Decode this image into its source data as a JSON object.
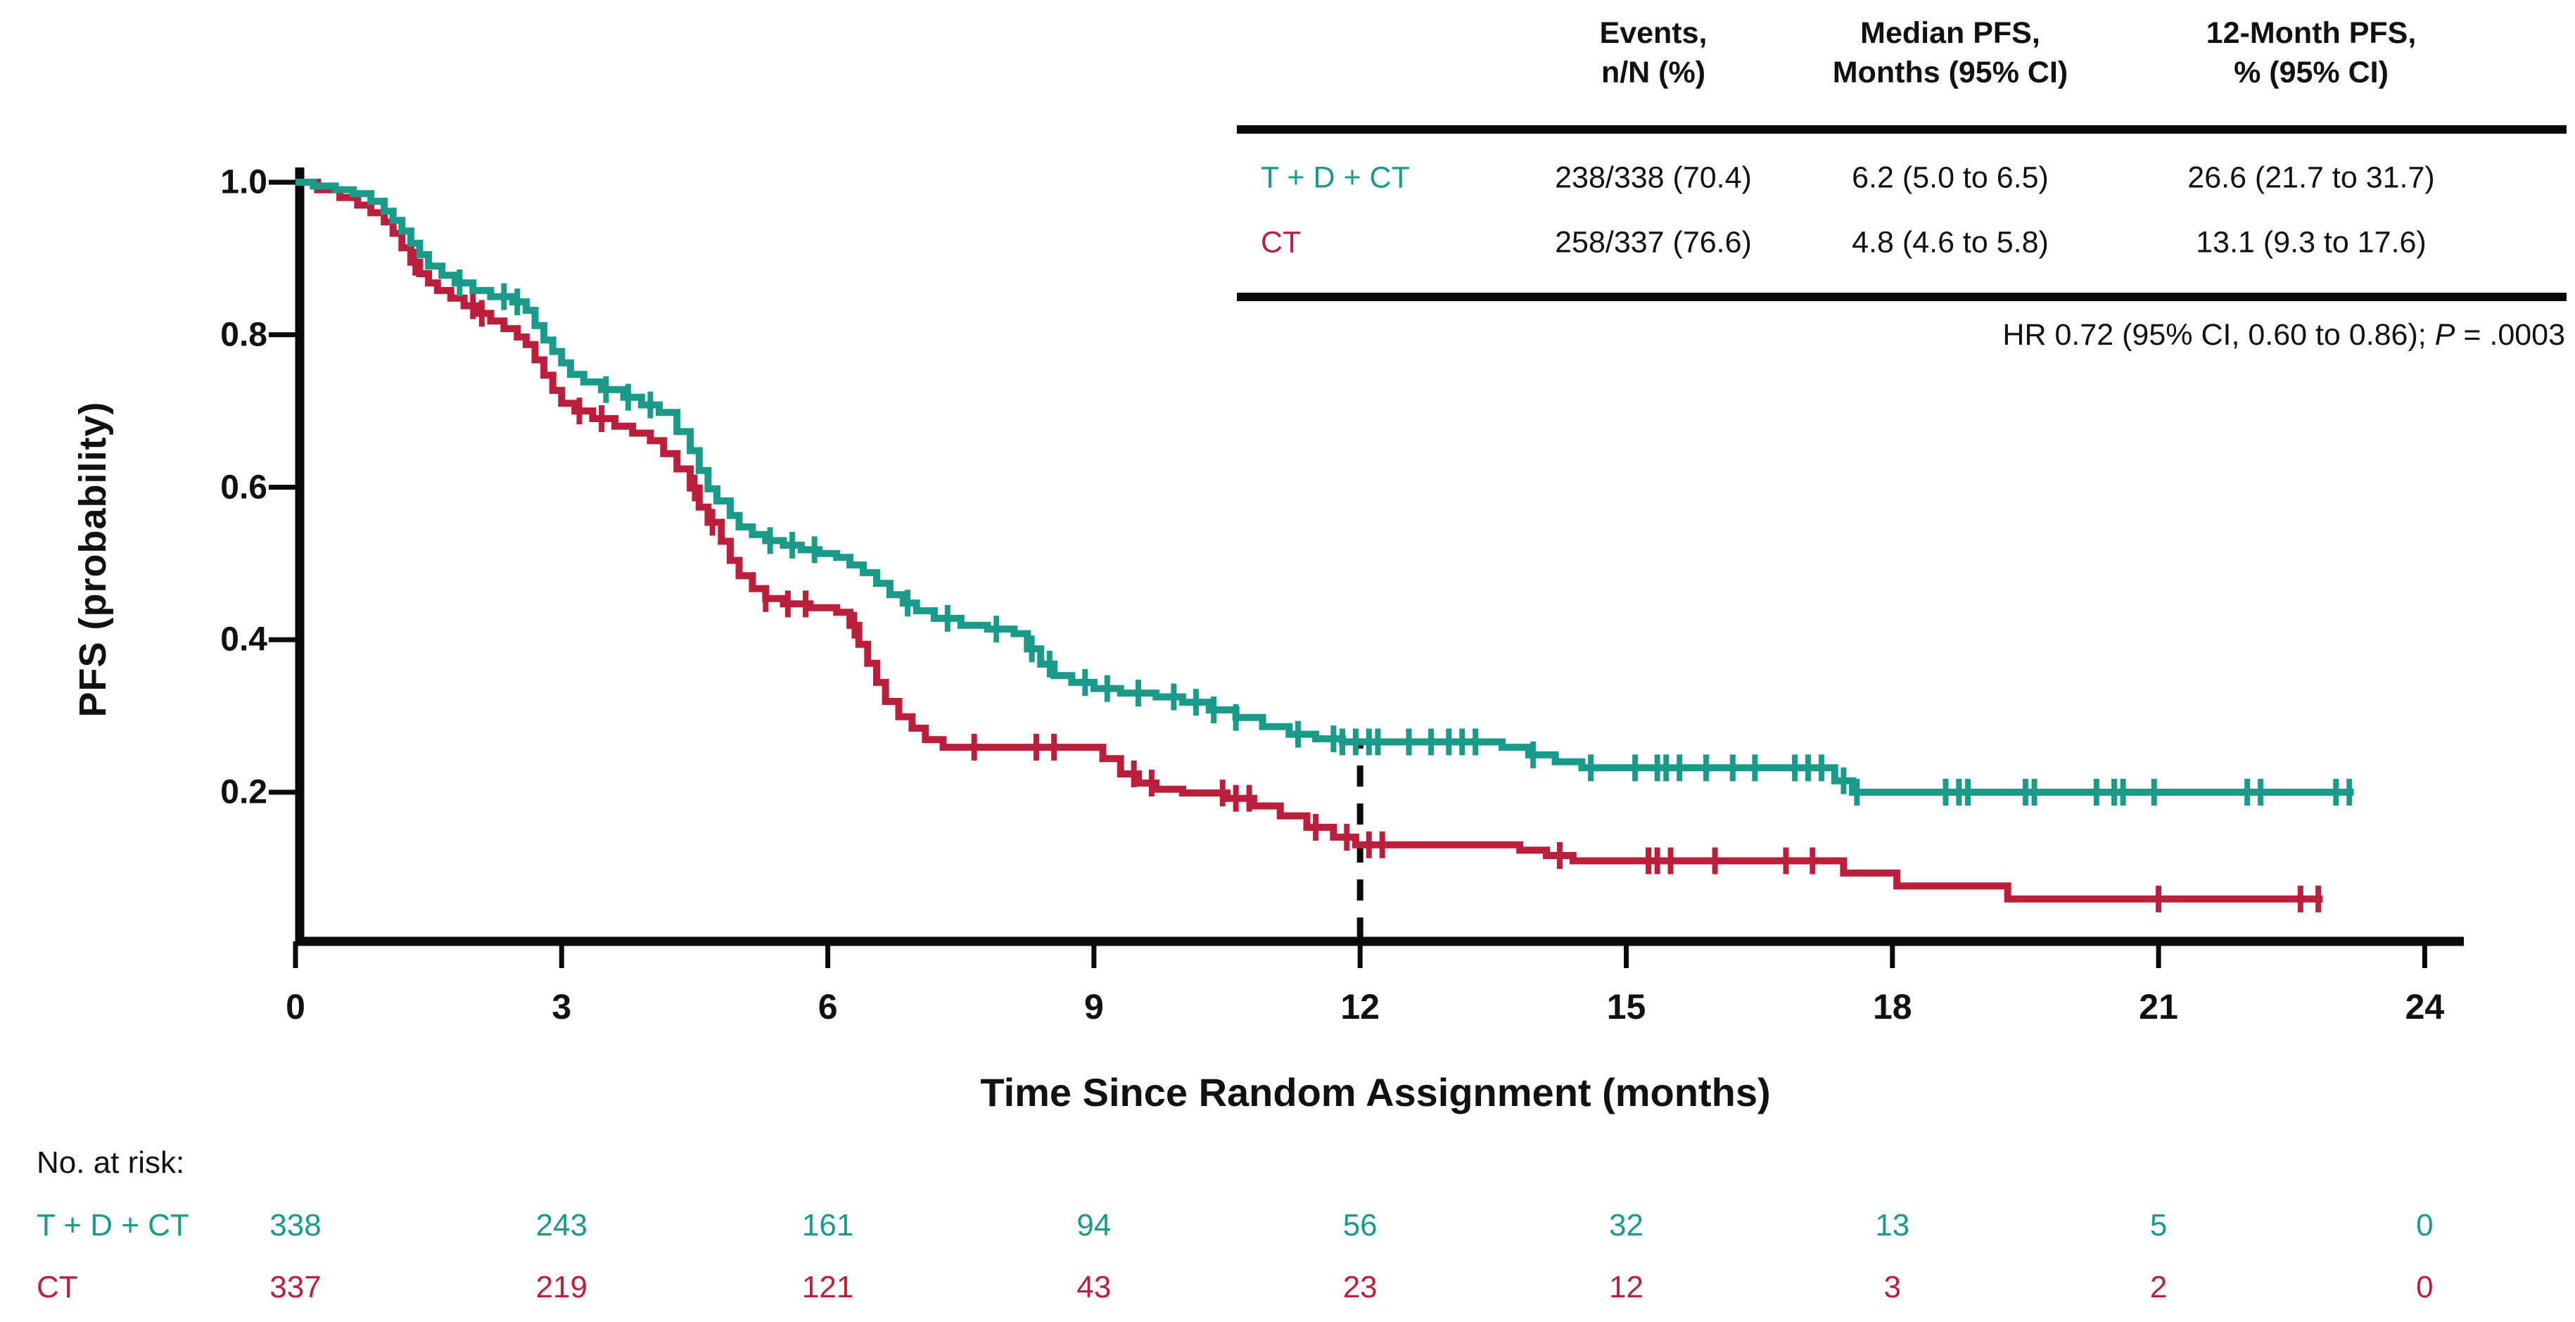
{
  "summary_table": {
    "headers": [
      {
        "line1": "Events,",
        "line2": "n/N (%)"
      },
      {
        "line1": "Median PFS,",
        "line2": "Months (95% CI)"
      },
      {
        "line1": "12-Month PFS,",
        "line2": "% (95% CI)"
      }
    ],
    "rows": [
      {
        "label": "T + D + CT",
        "events": "238/338 (70.4)",
        "median": "6.2 (5.0 to 6.5)",
        "pfs12": "26.6 (21.7 to 31.7)"
      },
      {
        "label": "CT",
        "events": "258/337 (76.6)",
        "median": "4.8 (4.6 to 5.8)",
        "pfs12": "13.1 (9.3 to 17.6)"
      }
    ]
  },
  "hr_note": {
    "prefix": "HR 0.72 (95% CI, 0.60 to 0.86); ",
    "p_symbol": "P",
    "p_rest": " = .0003"
  },
  "chart_data": {
    "type": "line",
    "subtype": "kaplan-meier-step",
    "xlabel": "Time Since Random Assignment (months)",
    "ylabel": "PFS (probability)",
    "xticks": [
      0,
      3,
      6,
      9,
      12,
      15,
      18,
      21,
      24
    ],
    "yticks": [
      "1.0",
      "0.8",
      "0.6",
      "0.4",
      "0.2"
    ],
    "ytick_values": [
      1.0,
      0.8,
      0.6,
      0.4,
      0.2
    ],
    "xlim": [
      0,
      24.5
    ],
    "ylim": [
      0,
      1.0
    ],
    "grid": false,
    "landmark_month": 12,
    "landmark_style": "dashed-vertical-to-upper-curve",
    "axis_color": "#0a0a0a",
    "series": [
      {
        "name": "T + D + CT",
        "color": "#1a9a88",
        "median_pfs_months": 6.2,
        "pfs_12mo": 0.266,
        "end_month": 23.2,
        "steps": [
          [
            0,
            1.0
          ],
          [
            0.2,
            0.995
          ],
          [
            0.45,
            0.99
          ],
          [
            0.65,
            0.985
          ],
          [
            0.85,
            0.975
          ],
          [
            1.0,
            0.962
          ],
          [
            1.1,
            0.95
          ],
          [
            1.2,
            0.936
          ],
          [
            1.3,
            0.92
          ],
          [
            1.4,
            0.905
          ],
          [
            1.5,
            0.89
          ],
          [
            1.65,
            0.878
          ],
          [
            1.8,
            0.868
          ],
          [
            2.0,
            0.858
          ],
          [
            2.2,
            0.85
          ],
          [
            2.45,
            0.843
          ],
          [
            2.6,
            0.832
          ],
          [
            2.7,
            0.812
          ],
          [
            2.8,
            0.793
          ],
          [
            2.9,
            0.778
          ],
          [
            3.0,
            0.763
          ],
          [
            3.1,
            0.748
          ],
          [
            3.25,
            0.738
          ],
          [
            3.45,
            0.728
          ],
          [
            3.7,
            0.718
          ],
          [
            3.9,
            0.708
          ],
          [
            4.1,
            0.698
          ],
          [
            4.3,
            0.673
          ],
          [
            4.45,
            0.648
          ],
          [
            4.55,
            0.622
          ],
          [
            4.65,
            0.598
          ],
          [
            4.75,
            0.582
          ],
          [
            4.9,
            0.563
          ],
          [
            5.0,
            0.548
          ],
          [
            5.15,
            0.538
          ],
          [
            5.3,
            0.53
          ],
          [
            5.5,
            0.524
          ],
          [
            5.7,
            0.518
          ],
          [
            5.9,
            0.513
          ],
          [
            6.1,
            0.508
          ],
          [
            6.25,
            0.498
          ],
          [
            6.4,
            0.488
          ],
          [
            6.55,
            0.474
          ],
          [
            6.7,
            0.459
          ],
          [
            6.85,
            0.448
          ],
          [
            7.0,
            0.438
          ],
          [
            7.2,
            0.428
          ],
          [
            7.5,
            0.419
          ],
          [
            7.8,
            0.414
          ],
          [
            8.1,
            0.408
          ],
          [
            8.25,
            0.388
          ],
          [
            8.4,
            0.368
          ],
          [
            8.55,
            0.353
          ],
          [
            8.75,
            0.344
          ],
          [
            9.0,
            0.336
          ],
          [
            9.3,
            0.33
          ],
          [
            9.7,
            0.325
          ],
          [
            10.0,
            0.318
          ],
          [
            10.3,
            0.308
          ],
          [
            10.6,
            0.298
          ],
          [
            10.9,
            0.286
          ],
          [
            11.2,
            0.276
          ],
          [
            11.5,
            0.27
          ],
          [
            11.8,
            0.266
          ],
          [
            13.6,
            0.259
          ],
          [
            13.9,
            0.249
          ],
          [
            14.2,
            0.24
          ],
          [
            14.5,
            0.232
          ],
          [
            17.35,
            0.215
          ],
          [
            17.55,
            0.2
          ]
        ],
        "censor_months": [
          1.85,
          2.35,
          2.5,
          3.5,
          3.75,
          4.0,
          5.35,
          5.6,
          5.85,
          6.9,
          7.35,
          7.9,
          8.3,
          8.5,
          8.9,
          9.15,
          9.5,
          9.9,
          10.15,
          10.35,
          10.6,
          11.3,
          11.7,
          11.8,
          11.95,
          12.1,
          12.2,
          12.55,
          12.8,
          13.0,
          13.15,
          13.3,
          13.95,
          14.6,
          15.1,
          15.35,
          15.45,
          15.6,
          15.9,
          16.2,
          16.45,
          16.9,
          17.05,
          17.2,
          17.45,
          17.6,
          18.6,
          18.75,
          18.85,
          19.5,
          19.6,
          20.3,
          20.5,
          20.6,
          20.95,
          22.0,
          22.15,
          23.0,
          23.15
        ]
      },
      {
        "name": "CT",
        "color": "#bb1f3c",
        "median_pfs_months": 4.8,
        "pfs_12mo": 0.131,
        "end_month": 22.85,
        "steps": [
          [
            0,
            1.0
          ],
          [
            0.25,
            0.99
          ],
          [
            0.5,
            0.98
          ],
          [
            0.7,
            0.97
          ],
          [
            0.85,
            0.96
          ],
          [
            1.0,
            0.948
          ],
          [
            1.1,
            0.933
          ],
          [
            1.2,
            0.914
          ],
          [
            1.3,
            0.895
          ],
          [
            1.4,
            0.88
          ],
          [
            1.5,
            0.868
          ],
          [
            1.6,
            0.858
          ],
          [
            1.75,
            0.848
          ],
          [
            1.9,
            0.838
          ],
          [
            2.05,
            0.828
          ],
          [
            2.2,
            0.818
          ],
          [
            2.35,
            0.808
          ],
          [
            2.5,
            0.797
          ],
          [
            2.6,
            0.787
          ],
          [
            2.7,
            0.767
          ],
          [
            2.8,
            0.747
          ],
          [
            2.9,
            0.727
          ],
          [
            3.0,
            0.71
          ],
          [
            3.15,
            0.7
          ],
          [
            3.35,
            0.69
          ],
          [
            3.6,
            0.68
          ],
          [
            3.8,
            0.671
          ],
          [
            4.0,
            0.661
          ],
          [
            4.15,
            0.644
          ],
          [
            4.3,
            0.624
          ],
          [
            4.45,
            0.599
          ],
          [
            4.55,
            0.574
          ],
          [
            4.65,
            0.554
          ],
          [
            4.8,
            0.529
          ],
          [
            4.9,
            0.504
          ],
          [
            5.0,
            0.484
          ],
          [
            5.15,
            0.467
          ],
          [
            5.3,
            0.454
          ],
          [
            5.5,
            0.447
          ],
          [
            5.8,
            0.442
          ],
          [
            6.1,
            0.436
          ],
          [
            6.25,
            0.419
          ],
          [
            6.35,
            0.394
          ],
          [
            6.45,
            0.369
          ],
          [
            6.55,
            0.344
          ],
          [
            6.65,
            0.319
          ],
          [
            6.8,
            0.299
          ],
          [
            6.95,
            0.284
          ],
          [
            7.1,
            0.269
          ],
          [
            7.3,
            0.259
          ],
          [
            9.1,
            0.244
          ],
          [
            9.3,
            0.224
          ],
          [
            9.5,
            0.212
          ],
          [
            9.7,
            0.204
          ],
          [
            10.0,
            0.199
          ],
          [
            10.5,
            0.192
          ],
          [
            10.8,
            0.182
          ],
          [
            11.1,
            0.169
          ],
          [
            11.4,
            0.154
          ],
          [
            11.7,
            0.141
          ],
          [
            11.95,
            0.131
          ],
          [
            13.8,
            0.124
          ],
          [
            14.1,
            0.117
          ],
          [
            14.4,
            0.11
          ],
          [
            17.45,
            0.094
          ],
          [
            18.05,
            0.077
          ],
          [
            19.3,
            0.06
          ]
        ],
        "censor_months": [
          1.35,
          2.0,
          2.1,
          3.2,
          3.45,
          4.5,
          4.7,
          5.3,
          5.55,
          5.75,
          6.3,
          7.65,
          8.35,
          8.55,
          9.45,
          9.65,
          10.45,
          10.6,
          10.75,
          11.5,
          11.85,
          12.1,
          12.25,
          14.25,
          15.25,
          15.35,
          15.5,
          16.0,
          16.8,
          17.1,
          21.0,
          22.6,
          22.8
        ]
      }
    ]
  },
  "at_risk": {
    "title": "No. at risk:",
    "timepoints": [
      0,
      3,
      6,
      9,
      12,
      15,
      18,
      21,
      24
    ],
    "rows": [
      {
        "label": "T + D + CT",
        "counts": [
          "338",
          "243",
          "161",
          "94",
          "56",
          "32",
          "13",
          "5",
          "0"
        ]
      },
      {
        "label": "CT",
        "counts": [
          "337",
          "219",
          "121",
          "43",
          "23",
          "12",
          "3",
          "2",
          "0"
        ]
      }
    ]
  }
}
